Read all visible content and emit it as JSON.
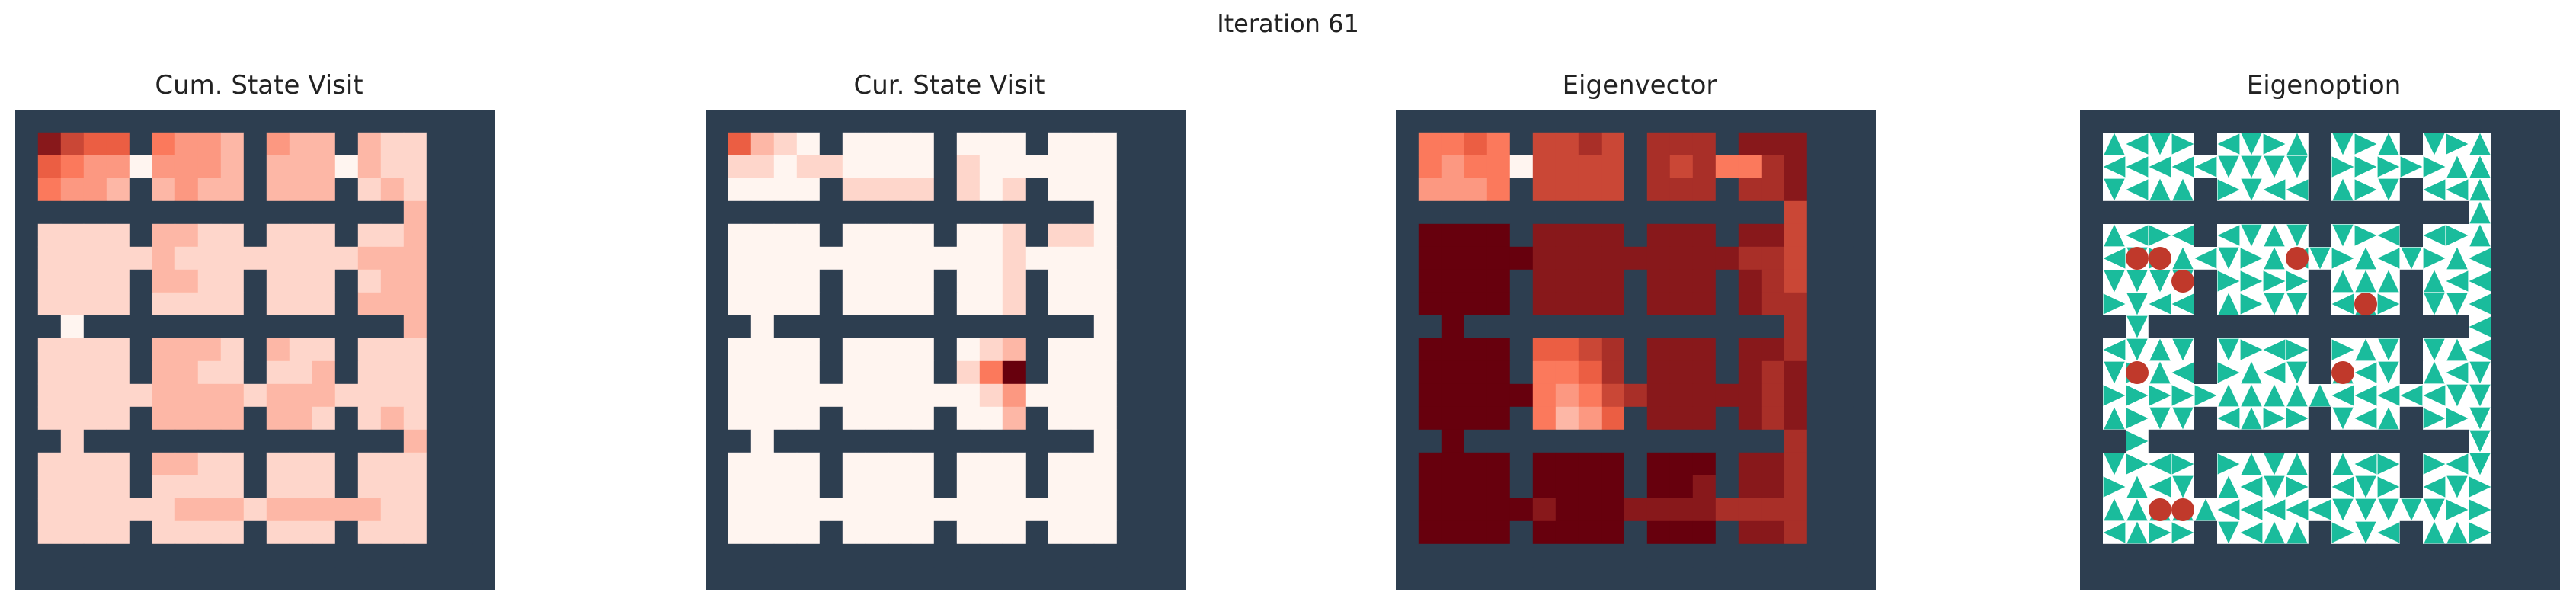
{
  "figure": {
    "title": "Iteration 61"
  },
  "colors": {
    "wall": "#2d3e50",
    "arrow_bg": "#ffffff",
    "arrow": "#1abc9c",
    "dot": "#c0392b",
    "heat_low": "#fff5f0",
    "heat_mid": "#fb6a4a",
    "heat_high": "#67000d"
  },
  "chart_data": [
    {
      "type": "heatmap",
      "title": "Cum. State Visit",
      "grid": [
        [
          8,
          6,
          5,
          5,
          0,
          4,
          3,
          3,
          2,
          0,
          3,
          2,
          2,
          0,
          2,
          1,
          1,
          1,
          0
        ],
        [
          5,
          4,
          3,
          3,
          0,
          3,
          3,
          3,
          2,
          0,
          2,
          2,
          2,
          0,
          2,
          1,
          1,
          1,
          0
        ],
        [
          4,
          3,
          3,
          2,
          0,
          2,
          3,
          2,
          2,
          0,
          2,
          2,
          2,
          0,
          1,
          2,
          1,
          1,
          0
        ],
        [
          0,
          0,
          0,
          0,
          0,
          0,
          0,
          0,
          0,
          0,
          0,
          0,
          0,
          0,
          0,
          0,
          2,
          0,
          0
        ],
        [
          1,
          1,
          1,
          1,
          0,
          2,
          2,
          1,
          1,
          0,
          1,
          1,
          1,
          0,
          1,
          1,
          2,
          0,
          0
        ],
        [
          1,
          1,
          1,
          1,
          1,
          2,
          1,
          1,
          1,
          1,
          1,
          1,
          1,
          1,
          2,
          2,
          2,
          0,
          0
        ],
        [
          1,
          1,
          1,
          1,
          0,
          2,
          2,
          1,
          1,
          0,
          1,
          1,
          1,
          0,
          1,
          2,
          2,
          0,
          0
        ],
        [
          1,
          1,
          1,
          1,
          0,
          1,
          1,
          1,
          1,
          0,
          1,
          1,
          1,
          0,
          2,
          2,
          2,
          0,
          0
        ],
        [
          0,
          0,
          1,
          0,
          0,
          0,
          0,
          0,
          0,
          0,
          0,
          0,
          0,
          0,
          0,
          0,
          2,
          0,
          0
        ],
        [
          1,
          1,
          1,
          1,
          0,
          2,
          2,
          2,
          1,
          0,
          2,
          1,
          1,
          0,
          1,
          1,
          1,
          0,
          0
        ],
        [
          1,
          1,
          1,
          1,
          0,
          2,
          2,
          1,
          1,
          0,
          1,
          1,
          2,
          0,
          1,
          1,
          1,
          0,
          0
        ],
        [
          1,
          1,
          1,
          1,
          1,
          2,
          2,
          2,
          2,
          1,
          2,
          2,
          2,
          1,
          1,
          1,
          1,
          0,
          0
        ],
        [
          1,
          1,
          1,
          1,
          0,
          2,
          2,
          2,
          2,
          0,
          2,
          2,
          1,
          0,
          1,
          2,
          1,
          0,
          0
        ],
        [
          0,
          1,
          0,
          0,
          0,
          0,
          0,
          0,
          0,
          0,
          0,
          0,
          0,
          0,
          0,
          0,
          2,
          0,
          0
        ],
        [
          1,
          1,
          1,
          1,
          0,
          2,
          2,
          1,
          1,
          0,
          1,
          1,
          1,
          0,
          1,
          1,
          1,
          0,
          0
        ],
        [
          1,
          1,
          1,
          1,
          0,
          1,
          1,
          1,
          1,
          0,
          1,
          1,
          1,
          0,
          1,
          1,
          1,
          0,
          0
        ],
        [
          1,
          1,
          1,
          1,
          1,
          1,
          2,
          2,
          2,
          1,
          2,
          2,
          2,
          2,
          2,
          1,
          1,
          0,
          0
        ],
        [
          1,
          1,
          1,
          1,
          0,
          1,
          1,
          1,
          1,
          0,
          1,
          1,
          1,
          0,
          1,
          1,
          1,
          0,
          0
        ],
        [
          0,
          0,
          0,
          0,
          0,
          0,
          0,
          0,
          0,
          0,
          0,
          0,
          0,
          0,
          0,
          0,
          0,
          0,
          0
        ]
      ]
    },
    {
      "type": "heatmap",
      "title": "Cur. State Visit",
      "grid": [
        [
          5,
          2,
          1,
          0,
          0,
          0,
          0,
          0,
          0,
          0,
          0,
          0,
          0,
          0,
          0,
          0,
          0,
          0,
          0
        ],
        [
          1,
          1,
          0,
          1,
          1,
          0,
          0,
          0,
          0,
          0,
          1,
          0,
          0,
          0,
          0,
          0,
          0,
          0,
          0
        ],
        [
          0,
          0,
          0,
          0,
          1,
          1,
          1,
          1,
          1,
          1,
          1,
          0,
          1,
          0,
          0,
          0,
          0,
          0,
          0
        ],
        [
          0,
          0,
          0,
          0,
          0,
          0,
          0,
          0,
          0,
          0,
          0,
          0,
          1,
          0,
          0,
          0,
          0,
          0,
          0
        ],
        [
          0,
          0,
          0,
          0,
          0,
          0,
          0,
          0,
          0,
          0,
          0,
          0,
          1,
          1,
          1,
          1,
          0,
          0,
          0
        ],
        [
          0,
          0,
          0,
          0,
          0,
          0,
          0,
          0,
          0,
          0,
          0,
          0,
          1,
          0,
          0,
          0,
          0,
          0,
          0
        ],
        [
          0,
          0,
          0,
          0,
          0,
          0,
          0,
          0,
          0,
          0,
          0,
          0,
          1,
          0,
          0,
          0,
          0,
          0,
          0
        ],
        [
          0,
          0,
          0,
          0,
          0,
          0,
          0,
          0,
          0,
          0,
          0,
          0,
          1,
          0,
          0,
          0,
          0,
          0,
          0
        ],
        [
          0,
          0,
          0,
          0,
          0,
          0,
          0,
          0,
          0,
          0,
          0,
          0,
          1,
          0,
          0,
          0,
          0,
          0,
          0
        ],
        [
          0,
          0,
          0,
          0,
          0,
          0,
          0,
          0,
          0,
          0,
          0,
          1,
          2,
          0,
          0,
          0,
          0,
          0,
          0
        ],
        [
          0,
          0,
          0,
          0,
          0,
          0,
          0,
          0,
          0,
          0,
          1,
          4,
          9,
          0,
          0,
          0,
          0,
          0,
          0
        ],
        [
          0,
          0,
          0,
          0,
          0,
          0,
          0,
          0,
          0,
          0,
          0,
          1,
          3,
          0,
          0,
          0,
          0,
          0,
          0
        ],
        [
          0,
          0,
          0,
          0,
          0,
          0,
          0,
          0,
          0,
          0,
          0,
          0,
          2,
          0,
          0,
          0,
          0,
          0,
          0
        ],
        [
          0,
          0,
          0,
          0,
          0,
          0,
          0,
          0,
          0,
          0,
          0,
          0,
          0,
          0,
          0,
          0,
          0,
          0,
          0
        ],
        [
          0,
          0,
          0,
          0,
          0,
          0,
          0,
          0,
          0,
          0,
          0,
          0,
          0,
          0,
          0,
          0,
          0,
          0,
          0
        ],
        [
          0,
          0,
          0,
          0,
          0,
          0,
          0,
          0,
          0,
          0,
          0,
          0,
          0,
          0,
          0,
          0,
          0,
          0,
          0
        ],
        [
          0,
          0,
          0,
          0,
          0,
          0,
          0,
          0,
          0,
          0,
          0,
          0,
          0,
          0,
          0,
          0,
          0,
          0,
          0
        ],
        [
          0,
          0,
          0,
          0,
          0,
          0,
          0,
          0,
          0,
          0,
          0,
          0,
          0,
          0,
          0,
          0,
          0,
          0,
          0
        ],
        [
          0,
          0,
          0,
          0,
          0,
          0,
          0,
          0,
          0,
          0,
          0,
          0,
          0,
          0,
          0,
          0,
          0,
          0,
          0
        ]
      ]
    },
    {
      "type": "heatmap",
      "title": "Eigenvector",
      "grid": [
        [
          4,
          4,
          5,
          4,
          0,
          6,
          6,
          7,
          6,
          0,
          7,
          7,
          7,
          0,
          8,
          8,
          8,
          8,
          0
        ],
        [
          4,
          3,
          4,
          4,
          0,
          6,
          6,
          6,
          6,
          4,
          7,
          6,
          7,
          4,
          4,
          7,
          8,
          8,
          0
        ],
        [
          3,
          3,
          3,
          4,
          0,
          6,
          6,
          6,
          6,
          0,
          7,
          7,
          7,
          0,
          7,
          7,
          8,
          8,
          0
        ],
        [
          0,
          0,
          0,
          0,
          0,
          0,
          0,
          0,
          0,
          0,
          0,
          0,
          0,
          0,
          0,
          0,
          6,
          0,
          0
        ],
        [
          9,
          9,
          9,
          9,
          0,
          8,
          8,
          8,
          8,
          0,
          8,
          8,
          8,
          0,
          8,
          8,
          6,
          0,
          0
        ],
        [
          9,
          9,
          9,
          9,
          9,
          8,
          8,
          8,
          8,
          8,
          8,
          8,
          8,
          8,
          7,
          7,
          6,
          0,
          0
        ],
        [
          9,
          9,
          9,
          9,
          0,
          8,
          8,
          8,
          8,
          0,
          8,
          8,
          8,
          0,
          8,
          7,
          6,
          0,
          0
        ],
        [
          9,
          9,
          9,
          9,
          0,
          8,
          8,
          8,
          8,
          0,
          8,
          8,
          8,
          0,
          8,
          7,
          7,
          0,
          0
        ],
        [
          0,
          9,
          0,
          0,
          0,
          0,
          0,
          0,
          0,
          0,
          0,
          0,
          0,
          0,
          0,
          0,
          7,
          0,
          0
        ],
        [
          9,
          9,
          9,
          9,
          0,
          5,
          5,
          6,
          7,
          0,
          8,
          8,
          8,
          0,
          8,
          8,
          7,
          0,
          0
        ],
        [
          9,
          9,
          9,
          9,
          0,
          4,
          4,
          5,
          7,
          0,
          8,
          8,
          8,
          0,
          8,
          7,
          8,
          0,
          0
        ],
        [
          9,
          9,
          9,
          9,
          9,
          4,
          3,
          4,
          6,
          7,
          8,
          8,
          8,
          8,
          8,
          7,
          8,
          0,
          0
        ],
        [
          9,
          9,
          9,
          9,
          0,
          4,
          2,
          3,
          5,
          0,
          8,
          8,
          8,
          0,
          8,
          7,
          8,
          0,
          0
        ],
        [
          0,
          9,
          0,
          0,
          0,
          0,
          0,
          0,
          0,
          0,
          0,
          0,
          0,
          0,
          0,
          0,
          7,
          0,
          0
        ],
        [
          9,
          9,
          9,
          9,
          0,
          9,
          9,
          9,
          9,
          0,
          9,
          9,
          9,
          0,
          8,
          8,
          7,
          0,
          0
        ],
        [
          9,
          9,
          9,
          9,
          0,
          9,
          9,
          9,
          9,
          0,
          9,
          9,
          8,
          0,
          8,
          8,
          7,
          0,
          0
        ],
        [
          9,
          9,
          9,
          9,
          9,
          8,
          9,
          9,
          9,
          8,
          8,
          8,
          8,
          7,
          7,
          7,
          7,
          0,
          0
        ],
        [
          9,
          9,
          9,
          9,
          0,
          9,
          9,
          9,
          9,
          0,
          9,
          9,
          9,
          0,
          8,
          8,
          7,
          0,
          0
        ],
        [
          0,
          0,
          0,
          0,
          0,
          0,
          0,
          0,
          0,
          0,
          0,
          0,
          0,
          0,
          0,
          0,
          0,
          0,
          0
        ]
      ]
    },
    {
      "type": "quiver",
      "title": "Eigenoption",
      "terminal_states": [
        [
          5,
          1
        ],
        [
          5,
          2
        ],
        [
          6,
          3
        ],
        [
          5,
          8
        ],
        [
          7,
          11
        ],
        [
          10,
          1
        ],
        [
          10,
          10
        ],
        [
          16,
          2
        ],
        [
          16,
          3
        ]
      ]
    }
  ]
}
